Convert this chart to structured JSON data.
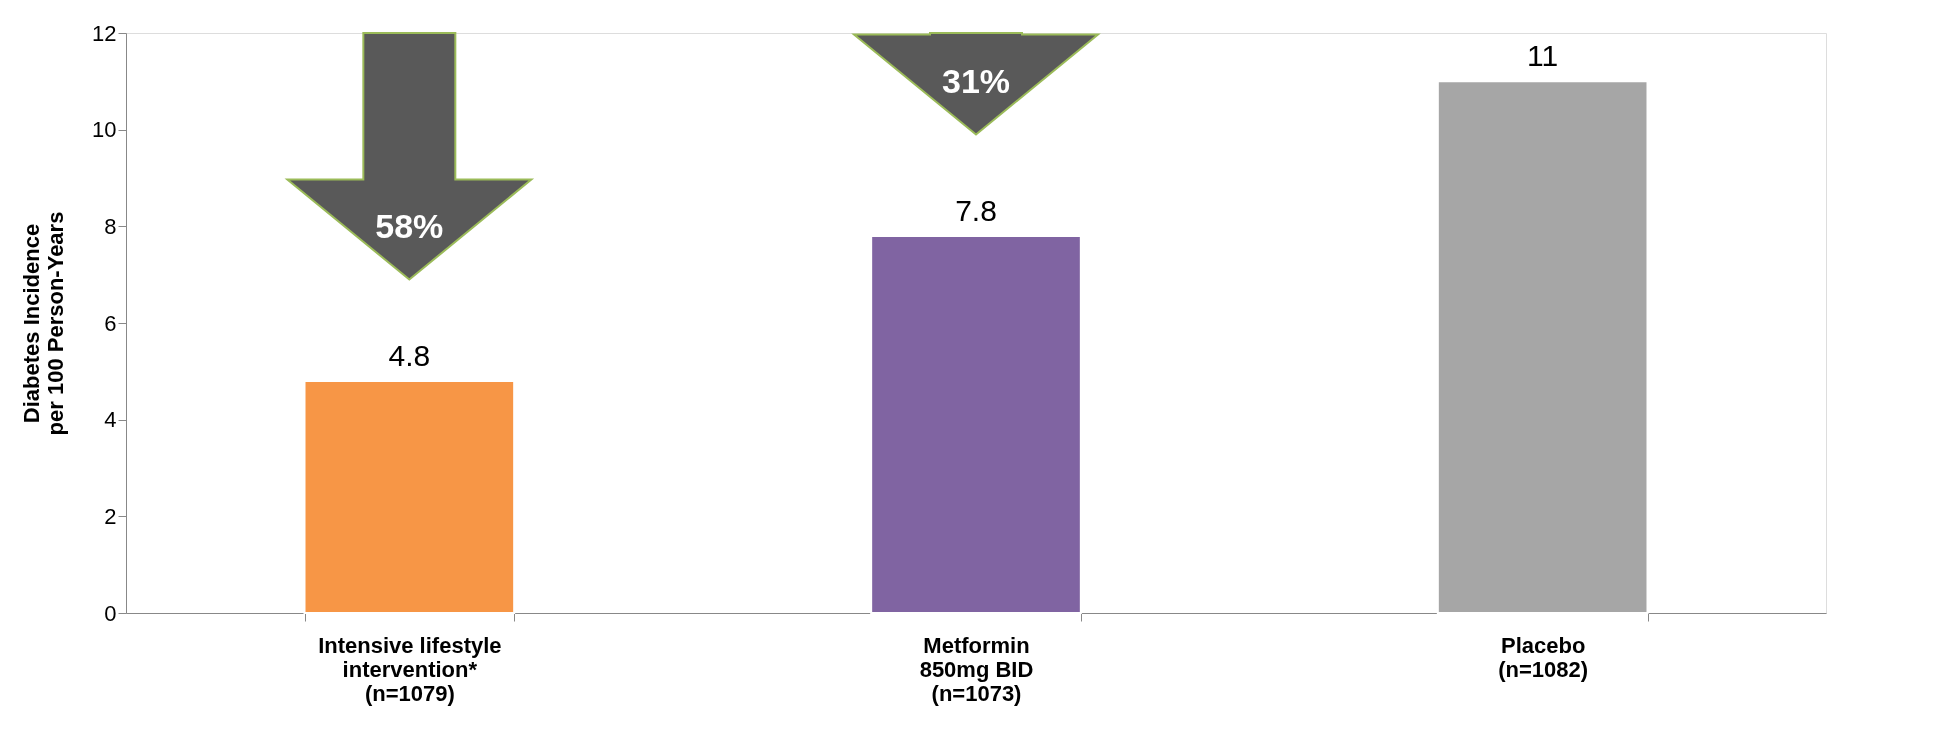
{
  "chart_data": {
    "type": "bar",
    "ylabel": "Diabetes Incidence\nper 100 Person-Years",
    "categories": [
      "Intensive lifestyle\nintervention*\n(n=1079)",
      "Metformin\n850mg BID\n(n=1073)",
      "Placebo\n(n=1082)"
    ],
    "values": [
      4.8,
      7.8,
      11
    ],
    "colors": [
      "#f79646",
      "#8064a2",
      "#a6a6a6"
    ],
    "ylim": [
      0,
      12
    ],
    "yticks": [
      0,
      2,
      4,
      6,
      8,
      10,
      12
    ],
    "data_labels": true,
    "grid": false,
    "annotations": [
      "58%",
      "31%"
    ]
  }
}
